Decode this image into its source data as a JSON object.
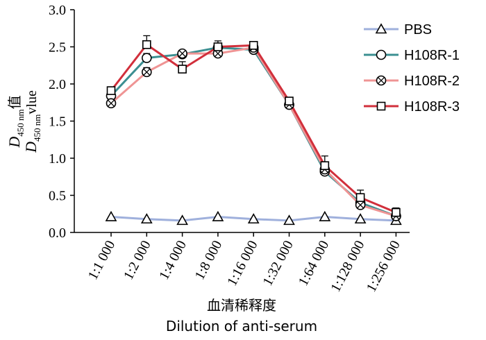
{
  "chart_data": {
    "type": "line",
    "categories": [
      "1:1 000",
      "1:2 000",
      "1:4 000",
      "1:8 000",
      "1:16 000",
      "1:32 000",
      "1:64 000",
      "1:128 000",
      "1:256 000"
    ],
    "ylim": [
      0,
      3.0
    ],
    "yticks": [
      "0.0",
      "0.5",
      "1.0",
      "1.5",
      "2.0",
      "2.5",
      "3.0"
    ],
    "ylabel": {
      "line1_main": "D",
      "line1_sub": "450 nm",
      "line1_suffix": "值",
      "line2_main": "D",
      "line2_sub": "450 nm",
      "line2_suffix": "vlue"
    },
    "xlabel_cn": "血清稀释度",
    "xlabel_en": "Dilution of anti-serum",
    "grid": false,
    "legend_position": "top-right",
    "series": [
      {
        "name": "PBS",
        "marker": "triangle",
        "color": "#9fb0dc",
        "values": [
          0.21,
          0.18,
          0.16,
          0.21,
          0.18,
          0.16,
          0.21,
          0.18,
          0.16
        ],
        "errors": [
          0,
          0,
          0,
          0,
          0,
          0,
          0,
          0,
          0
        ]
      },
      {
        "name": "H108R-1",
        "marker": "circle",
        "color": "#3b8f91",
        "values": [
          1.84,
          2.35,
          2.4,
          2.49,
          2.46,
          1.72,
          0.82,
          0.4,
          0.22
        ],
        "errors": [
          0,
          0.06,
          0.05,
          0.06,
          0.04,
          0.05,
          0.05,
          0.05,
          0.04
        ]
      },
      {
        "name": "H108R-2",
        "marker": "circle-x",
        "color": "#ef9494",
        "values": [
          1.74,
          2.16,
          2.41,
          2.41,
          2.49,
          1.72,
          0.85,
          0.37,
          0.22
        ],
        "errors": [
          0,
          0.06,
          0.04,
          0.05,
          0.04,
          0.04,
          0.05,
          0.05,
          0.04
        ]
      },
      {
        "name": "H108R-3",
        "marker": "square",
        "color": "#d12f3b",
        "values": [
          1.91,
          2.53,
          2.2,
          2.5,
          2.52,
          1.77,
          0.9,
          0.47,
          0.27
        ],
        "errors": [
          0,
          0.12,
          0.1,
          0.08,
          0.04,
          0.05,
          0.13,
          0.1,
          0.06
        ]
      }
    ]
  }
}
